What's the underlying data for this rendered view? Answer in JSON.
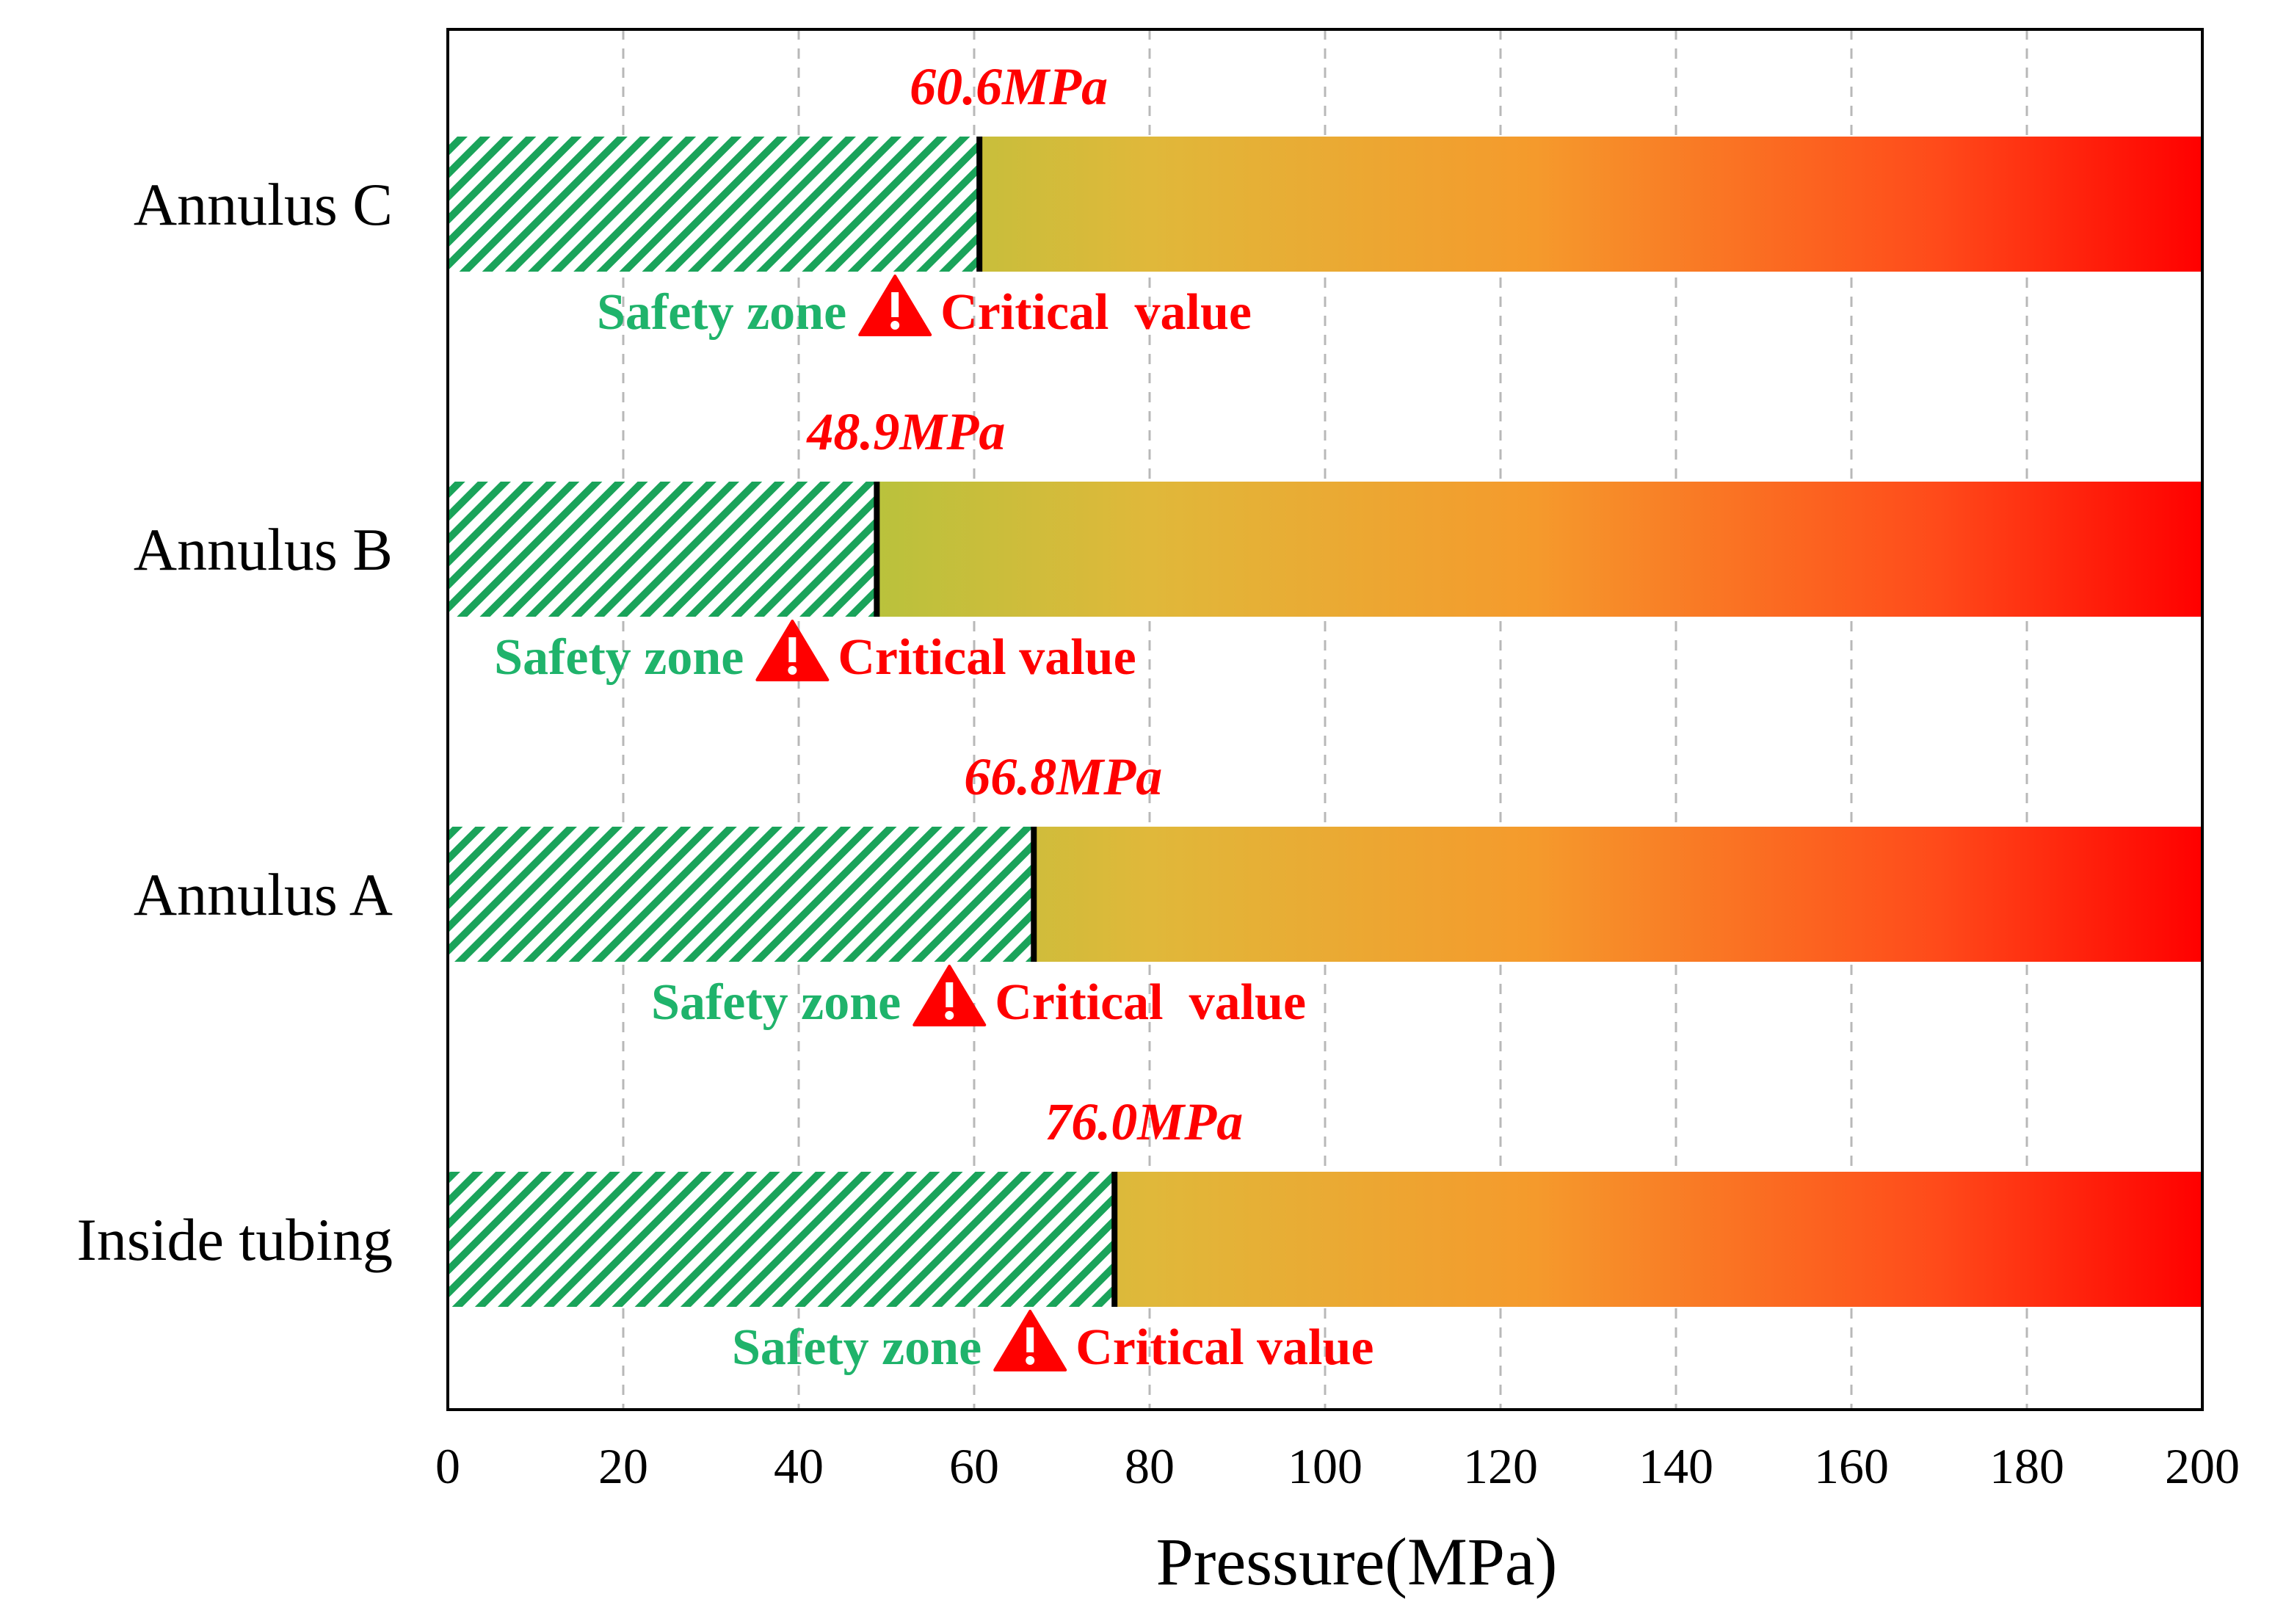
{
  "chart_data": {
    "type": "bar",
    "orientation": "horizontal",
    "xlabel": "Pressure(MPa)",
    "xlim": [
      0,
      200
    ],
    "xticks": [
      0,
      20,
      40,
      60,
      80,
      100,
      120,
      140,
      160,
      180,
      200
    ],
    "categories": [
      "Annulus C",
      "Annulus B",
      "Annulus A",
      "Inside tubing"
    ],
    "values": [
      60.6,
      48.9,
      66.8,
      76.0
    ],
    "value_labels": [
      "60.6MPa",
      "48.9MPa",
      "66.8MPa",
      "76.0MPa"
    ],
    "zone_labels": [
      {
        "safety": "Safety zone",
        "critical": "Critical  value"
      },
      {
        "safety": "Safety zone",
        "critical": "Critical value"
      },
      {
        "safety": "Safety zone",
        "critical": "Critical  value"
      },
      {
        "safety": "Safety zone",
        "critical": "Critical value"
      }
    ],
    "grid": "vertical dashed",
    "colors": {
      "safe_hatch": "#1aa35a",
      "gradient": [
        "#7dd13f",
        "#f59a2c",
        "#ff0000"
      ],
      "value_text": "#ff0000",
      "safety_text": "#1fb36b",
      "critical_text": "#ff0000",
      "threshold_line": "#000000"
    }
  }
}
